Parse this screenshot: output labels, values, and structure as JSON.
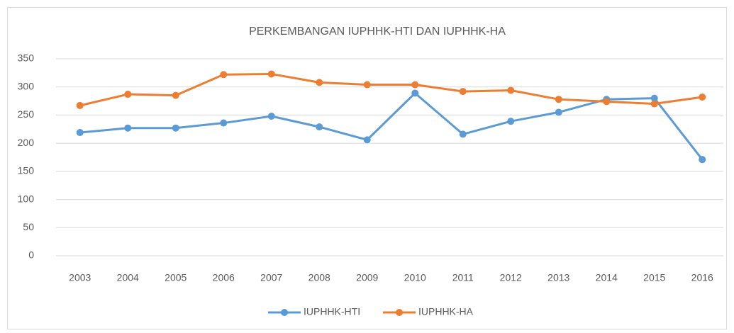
{
  "chart_data": {
    "type": "line",
    "title": "PERKEMBANGAN IUPHHK-HTI DAN IUPHHK-HA",
    "categories": [
      "2003",
      "2004",
      "2005",
      "2006",
      "2007",
      "2008",
      "2009",
      "2010",
      "2011",
      "2012",
      "2013",
      "2014",
      "2015",
      "2016"
    ],
    "series": [
      {
        "name": "IUPHHK-HTI",
        "color": "#5b9bd5",
        "values": [
          219,
          227,
          227,
          236,
          248,
          229,
          206,
          289,
          216,
          239,
          255,
          278,
          280,
          171
        ]
      },
      {
        "name": "IUPHHK-HA",
        "color": "#ed7d31",
        "values": [
          267,
          287,
          285,
          322,
          323,
          308,
          304,
          304,
          292,
          294,
          278,
          274,
          270,
          282
        ]
      }
    ],
    "ylim": [
      0,
      350
    ],
    "yticks": [
      0,
      50,
      100,
      150,
      200,
      250,
      300,
      350
    ],
    "grid": true,
    "legend": "bottom"
  }
}
